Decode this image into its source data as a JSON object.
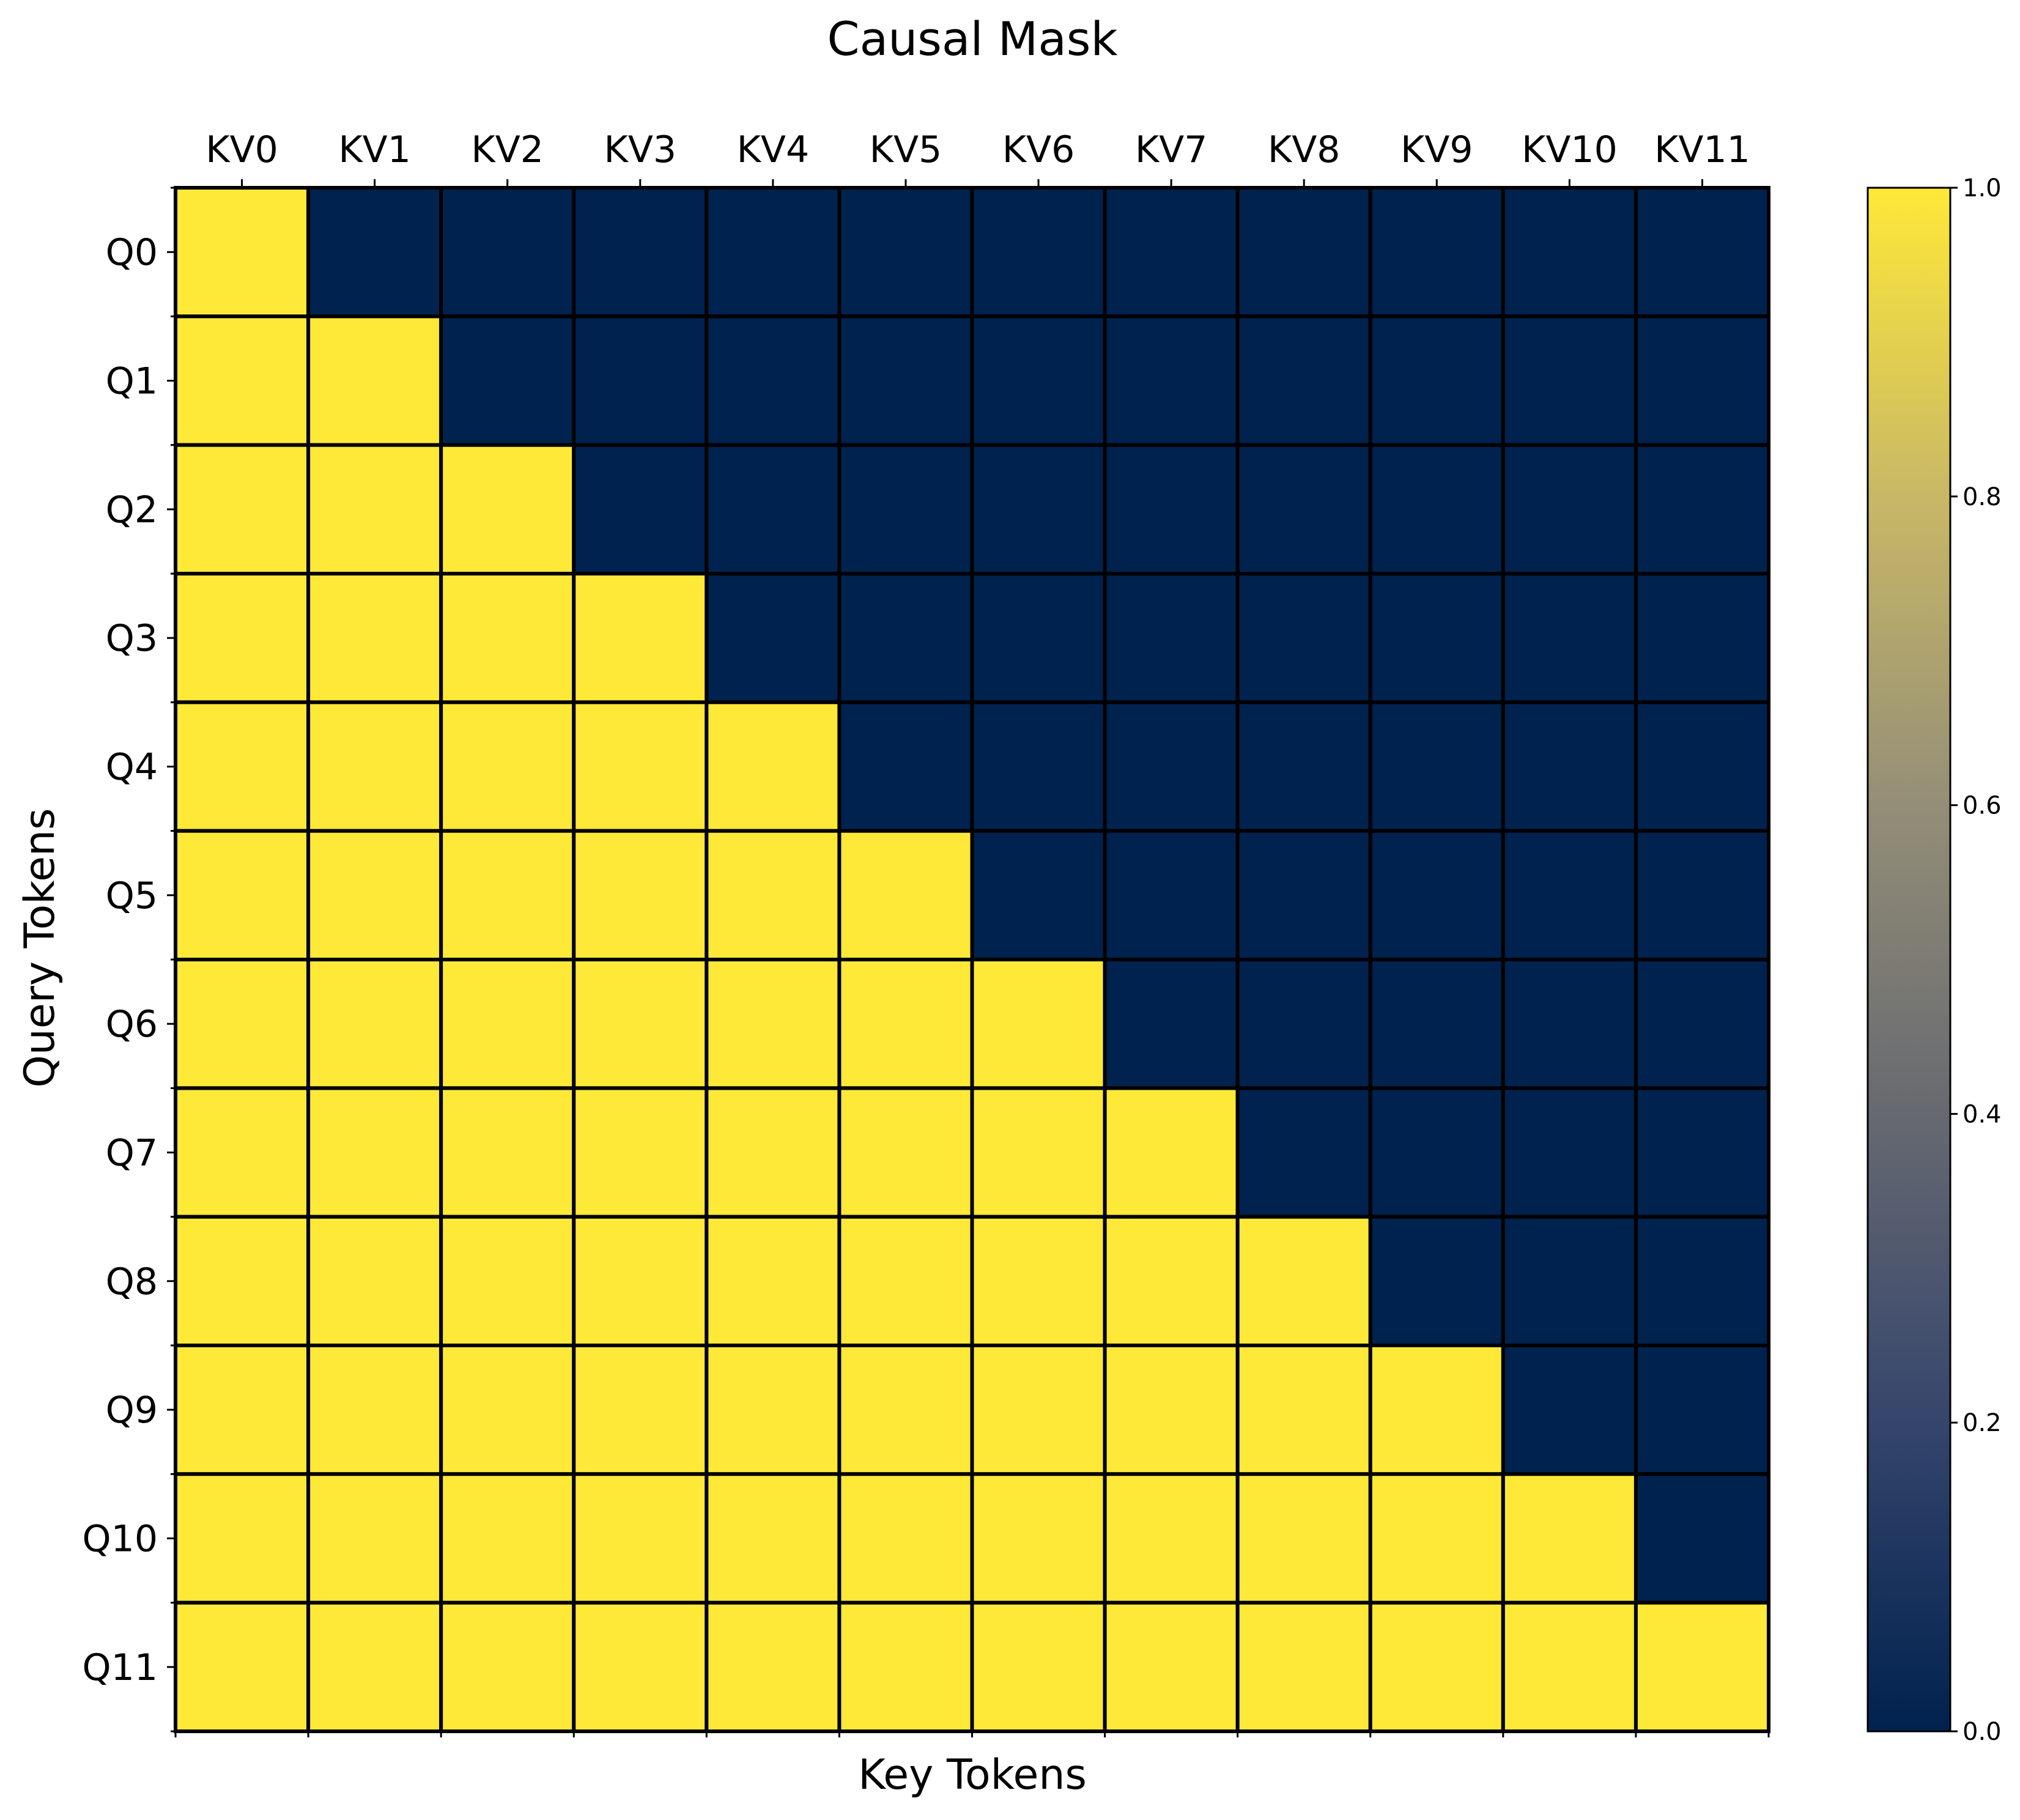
{
  "chart_data": {
    "type": "heatmap",
    "title": "Causal Mask",
    "xlabel": "Key Tokens",
    "ylabel": "Query Tokens",
    "x_categories": [
      "KV0",
      "KV1",
      "KV2",
      "KV3",
      "KV4",
      "KV5",
      "KV6",
      "KV7",
      "KV8",
      "KV9",
      "KV10",
      "KV11"
    ],
    "y_categories": [
      "Q0",
      "Q1",
      "Q2",
      "Q3",
      "Q4",
      "Q5",
      "Q6",
      "Q7",
      "Q8",
      "Q9",
      "Q10",
      "Q11"
    ],
    "x_tick_position": "top",
    "values": [
      [
        1,
        0,
        0,
        0,
        0,
        0,
        0,
        0,
        0,
        0,
        0,
        0
      ],
      [
        1,
        1,
        0,
        0,
        0,
        0,
        0,
        0,
        0,
        0,
        0,
        0
      ],
      [
        1,
        1,
        1,
        0,
        0,
        0,
        0,
        0,
        0,
        0,
        0,
        0
      ],
      [
        1,
        1,
        1,
        1,
        0,
        0,
        0,
        0,
        0,
        0,
        0,
        0
      ],
      [
        1,
        1,
        1,
        1,
        1,
        0,
        0,
        0,
        0,
        0,
        0,
        0
      ],
      [
        1,
        1,
        1,
        1,
        1,
        1,
        0,
        0,
        0,
        0,
        0,
        0
      ],
      [
        1,
        1,
        1,
        1,
        1,
        1,
        1,
        0,
        0,
        0,
        0,
        0
      ],
      [
        1,
        1,
        1,
        1,
        1,
        1,
        1,
        1,
        0,
        0,
        0,
        0
      ],
      [
        1,
        1,
        1,
        1,
        1,
        1,
        1,
        1,
        1,
        0,
        0,
        0
      ],
      [
        1,
        1,
        1,
        1,
        1,
        1,
        1,
        1,
        1,
        1,
        0,
        0
      ],
      [
        1,
        1,
        1,
        1,
        1,
        1,
        1,
        1,
        1,
        1,
        1,
        0
      ],
      [
        1,
        1,
        1,
        1,
        1,
        1,
        1,
        1,
        1,
        1,
        1,
        1
      ]
    ],
    "colormap": "cividis",
    "color_low": "#00224e",
    "color_high": "#fee838",
    "cell_border_color": "#000000",
    "colorbar": {
      "range": [
        0.0,
        1.0
      ],
      "ticks": [
        "0.0",
        "0.2",
        "0.4",
        "0.6",
        "0.8",
        "1.0"
      ],
      "stops": [
        "#00224e",
        "#35456c",
        "#666970",
        "#948e77",
        "#c8b866",
        "#fee838"
      ]
    }
  }
}
